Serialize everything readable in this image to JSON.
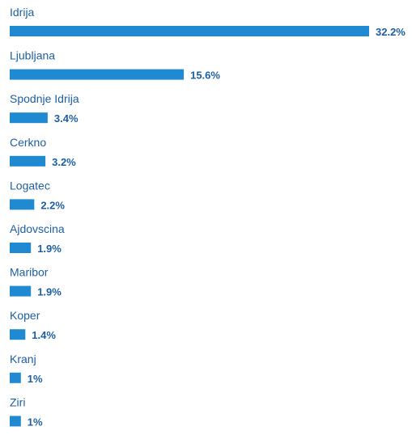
{
  "chart_data": {
    "type": "bar",
    "orientation": "horizontal",
    "categories": [
      "Idrija",
      "Ljubljana",
      "Spodnje Idrija",
      "Cerkno",
      "Logatec",
      "Ajdovscina",
      "Maribor",
      "Koper",
      "Kranj",
      "Ziri"
    ],
    "values": [
      32.2,
      15.6,
      3.4,
      3.2,
      2.2,
      1.9,
      1.9,
      1.4,
      1,
      1
    ],
    "value_labels": [
      "32.2%",
      "15.6%",
      "3.4%",
      "3.2%",
      "2.2%",
      "1.9%",
      "1.9%",
      "1.4%",
      "1%",
      "1%"
    ],
    "xlim": [
      0,
      32.2
    ],
    "grid": false,
    "legend": "none",
    "colors": {
      "bar": "#1f8ad1",
      "label": "#1d5fa3"
    }
  }
}
